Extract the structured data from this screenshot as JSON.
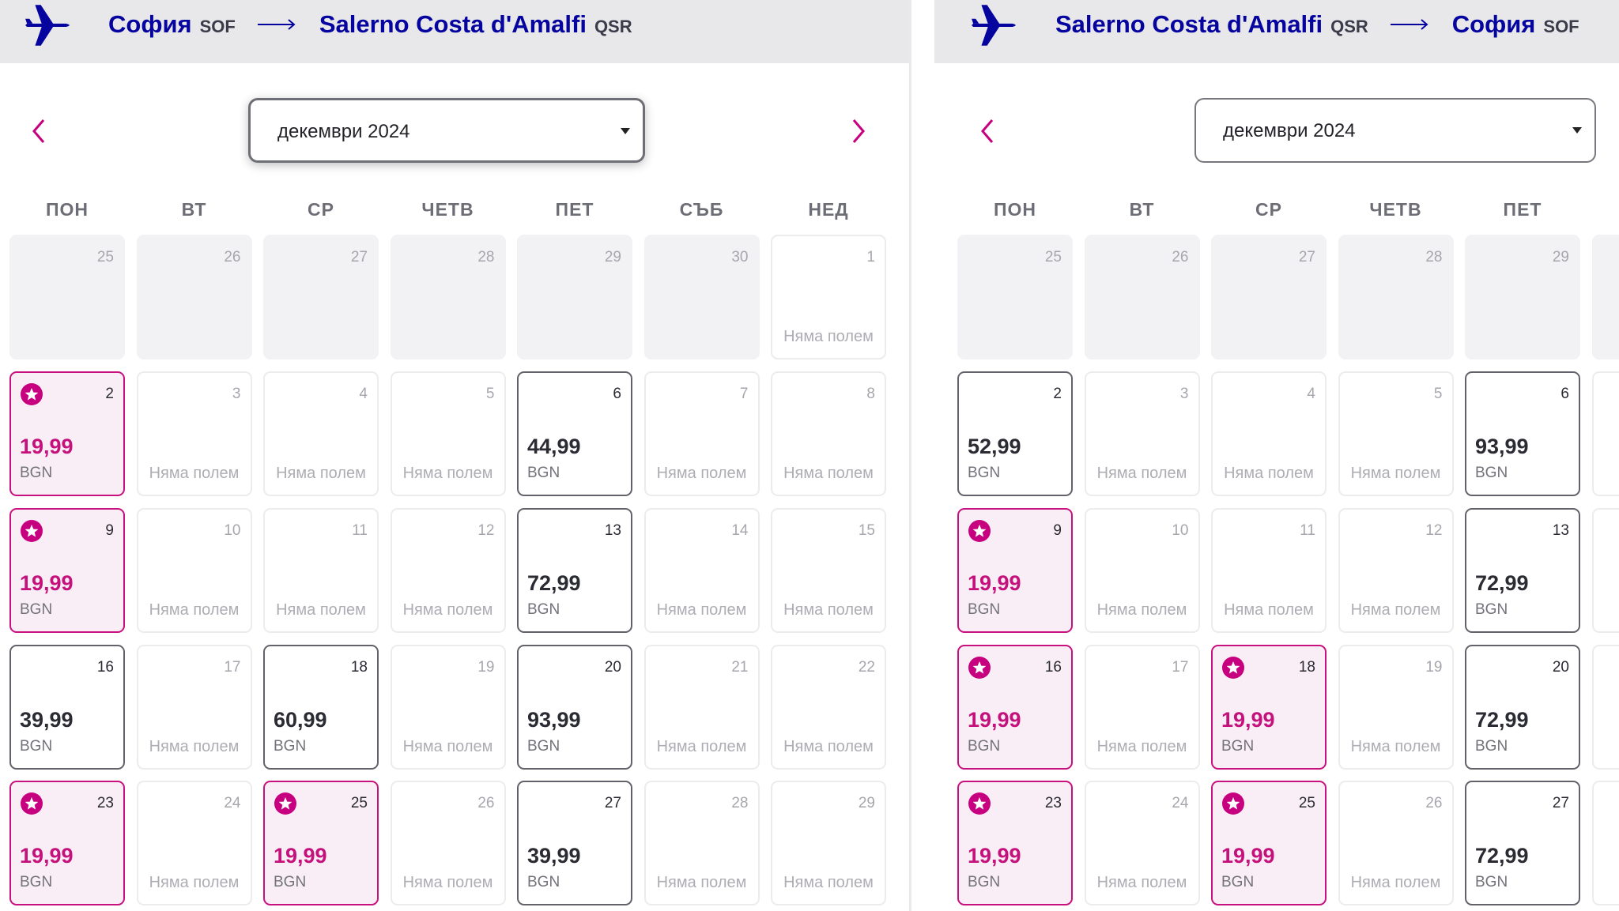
{
  "colors": {
    "brand": "#06049f",
    "accent": "#c6007e",
    "header_bg": "#e8e8eb"
  },
  "panels": [
    {
      "from_city": "София",
      "from_code": "SOF",
      "to_city": "Salerno Costa d'Amalfi",
      "to_code": "QSR",
      "month": "декември 2024",
      "focused": true,
      "weekdays": [
        "ПОН",
        "ВТ",
        "СР",
        "ЧЕТВ",
        "ПЕТ",
        "СЪБ",
        "НЕД"
      ],
      "rows": [
        [
          {
            "day": "25",
            "kind": "out"
          },
          {
            "day": "26",
            "kind": "out"
          },
          {
            "day": "27",
            "kind": "out"
          },
          {
            "day": "28",
            "kind": "out"
          },
          {
            "day": "29",
            "kind": "out"
          },
          {
            "day": "30",
            "kind": "out"
          },
          {
            "day": "1",
            "kind": "none",
            "text": "Няма полем"
          }
        ],
        [
          {
            "day": "2",
            "kind": "cheap",
            "price": "19,99",
            "currency": "BGN"
          },
          {
            "day": "3",
            "kind": "none",
            "text": "Няма полем"
          },
          {
            "day": "4",
            "kind": "none",
            "text": "Няма полем"
          },
          {
            "day": "5",
            "kind": "none",
            "text": "Няма полем"
          },
          {
            "day": "6",
            "kind": "priced",
            "price": "44,99",
            "currency": "BGN"
          },
          {
            "day": "7",
            "kind": "none",
            "text": "Няма полем"
          },
          {
            "day": "8",
            "kind": "none",
            "text": "Няма полем"
          }
        ],
        [
          {
            "day": "9",
            "kind": "cheap",
            "price": "19,99",
            "currency": "BGN"
          },
          {
            "day": "10",
            "kind": "none",
            "text": "Няма полем"
          },
          {
            "day": "11",
            "kind": "none",
            "text": "Няма полем"
          },
          {
            "day": "12",
            "kind": "none",
            "text": "Няма полем"
          },
          {
            "day": "13",
            "kind": "priced",
            "price": "72,99",
            "currency": "BGN"
          },
          {
            "day": "14",
            "kind": "none",
            "text": "Няма полем"
          },
          {
            "day": "15",
            "kind": "none",
            "text": "Няма полем"
          }
        ],
        [
          {
            "day": "16",
            "kind": "priced",
            "price": "39,99",
            "currency": "BGN"
          },
          {
            "day": "17",
            "kind": "none",
            "text": "Няма полем"
          },
          {
            "day": "18",
            "kind": "priced",
            "price": "60,99",
            "currency": "BGN"
          },
          {
            "day": "19",
            "kind": "none",
            "text": "Няма полем"
          },
          {
            "day": "20",
            "kind": "priced",
            "price": "93,99",
            "currency": "BGN"
          },
          {
            "day": "21",
            "kind": "none",
            "text": "Няма полем"
          },
          {
            "day": "22",
            "kind": "none",
            "text": "Няма полем"
          }
        ],
        [
          {
            "day": "23",
            "kind": "cheap",
            "price": "19,99",
            "currency": "BGN"
          },
          {
            "day": "24",
            "kind": "none",
            "text": "Няма полем"
          },
          {
            "day": "25",
            "kind": "cheap",
            "price": "19,99",
            "currency": "BGN"
          },
          {
            "day": "26",
            "kind": "none",
            "text": "Няма полем"
          },
          {
            "day": "27",
            "kind": "priced",
            "price": "39,99",
            "currency": "BGN"
          },
          {
            "day": "28",
            "kind": "none",
            "text": "Няма полем"
          },
          {
            "day": "29",
            "kind": "none",
            "text": "Няма полем"
          }
        ]
      ]
    },
    {
      "from_city": "Salerno Costa d'Amalfi",
      "from_code": "QSR",
      "to_city": "София",
      "to_code": "SOF",
      "month": "декември 2024",
      "focused": false,
      "weekdays": [
        "ПОН",
        "ВТ",
        "СР",
        "ЧЕТВ",
        "ПЕТ"
      ],
      "rows": [
        [
          {
            "day": "25",
            "kind": "out"
          },
          {
            "day": "26",
            "kind": "out"
          },
          {
            "day": "27",
            "kind": "out"
          },
          {
            "day": "28",
            "kind": "out"
          },
          {
            "day": "29",
            "kind": "out"
          },
          {
            "day": "",
            "kind": "out"
          }
        ],
        [
          {
            "day": "2",
            "kind": "priced",
            "price": "52,99",
            "currency": "BGN"
          },
          {
            "day": "3",
            "kind": "none",
            "text": "Няма полем"
          },
          {
            "day": "4",
            "kind": "none",
            "text": "Няма полем"
          },
          {
            "day": "5",
            "kind": "none",
            "text": "Няма полем"
          },
          {
            "day": "6",
            "kind": "priced",
            "price": "93,99",
            "currency": "BGN"
          },
          {
            "day": "",
            "kind": "none",
            "text": "Ня"
          }
        ],
        [
          {
            "day": "9",
            "kind": "cheap",
            "price": "19,99",
            "currency": "BGN"
          },
          {
            "day": "10",
            "kind": "none",
            "text": "Няма полем"
          },
          {
            "day": "11",
            "kind": "none",
            "text": "Няма полем"
          },
          {
            "day": "12",
            "kind": "none",
            "text": "Няма полем"
          },
          {
            "day": "13",
            "kind": "priced",
            "price": "72,99",
            "currency": "BGN"
          },
          {
            "day": "",
            "kind": "none",
            "text": "Ня"
          }
        ],
        [
          {
            "day": "16",
            "kind": "cheap",
            "price": "19,99",
            "currency": "BGN"
          },
          {
            "day": "17",
            "kind": "none",
            "text": "Няма полем"
          },
          {
            "day": "18",
            "kind": "cheap",
            "price": "19,99",
            "currency": "BGN"
          },
          {
            "day": "19",
            "kind": "none",
            "text": "Няма полем"
          },
          {
            "day": "20",
            "kind": "priced",
            "price": "72,99",
            "currency": "BGN"
          },
          {
            "day": "",
            "kind": "none",
            "text": "Ня"
          }
        ],
        [
          {
            "day": "23",
            "kind": "cheap",
            "price": "19,99",
            "currency": "BGN"
          },
          {
            "day": "24",
            "kind": "none",
            "text": "Няма полем"
          },
          {
            "day": "25",
            "kind": "cheap",
            "price": "19,99",
            "currency": "BGN"
          },
          {
            "day": "26",
            "kind": "none",
            "text": "Няма полем"
          },
          {
            "day": "27",
            "kind": "priced",
            "price": "72,99",
            "currency": "BGN"
          },
          {
            "day": "",
            "kind": "none",
            "text": "Ня"
          }
        ]
      ]
    }
  ]
}
